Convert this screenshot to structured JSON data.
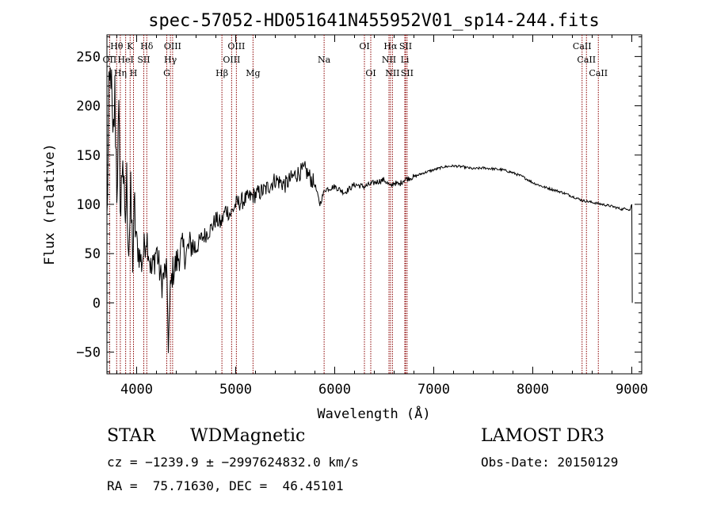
{
  "chart_data": {
    "type": "line",
    "title": "spec-57052-HD051641N455952V01_sp14-244.fits",
    "xlabel": "Wavelength (Å)",
    "ylabel": "Flux (relative)",
    "xlim": [
      3700,
      9100
    ],
    "ylim": [
      -72,
      272
    ],
    "x_ticks": [
      4000,
      5000,
      6000,
      7000,
      8000,
      9000
    ],
    "y_ticks": [
      -50,
      0,
      50,
      100,
      150,
      200,
      250
    ],
    "grid": false,
    "line_color": "#000000",
    "marker_color": "#8b0000",
    "series": [
      {
        "x": [
          3700,
          3720,
          3740,
          3760,
          3780,
          3800,
          3820,
          3840,
          3860,
          3880,
          3900,
          3920,
          3940,
          3960,
          3980,
          4000,
          4050,
          4100,
          4150,
          4200,
          4250,
          4300,
          4320,
          4340,
          4360,
          4400,
          4450,
          4500,
          4550,
          4600,
          4650,
          4700,
          4750,
          4800,
          4850,
          4900,
          4950,
          5000,
          5100,
          5200,
          5300,
          5400,
          5500,
          5600,
          5700,
          5800,
          5850,
          5900,
          6000,
          6100,
          6200,
          6300,
          6400,
          6500,
          6562,
          6600,
          6650,
          6700,
          6800,
          6900,
          7000,
          7100,
          7200,
          7300,
          7400,
          7500,
          7600,
          7700,
          7800,
          7900,
          8000,
          8100,
          8200,
          8300,
          8400,
          8500,
          8600,
          8700,
          8800,
          8900,
          8950,
          8980,
          9000,
          9005
        ],
        "y": [
          80,
          200,
          240,
          150,
          210,
          120,
          180,
          90,
          160,
          70,
          120,
          60,
          100,
          50,
          90,
          60,
          40,
          70,
          30,
          55,
          20,
          35,
          -40,
          10,
          30,
          40,
          55,
          50,
          60,
          55,
          65,
          70,
          75,
          85,
          80,
          95,
          90,
          100,
          105,
          110,
          115,
          125,
          120,
          130,
          135,
          120,
          100,
          115,
          118,
          112,
          120,
          118,
          122,
          125,
          118,
          122,
          120,
          125,
          128,
          132,
          135,
          138,
          139,
          138,
          136,
          137,
          136,
          135,
          132,
          128,
          122,
          118,
          115,
          112,
          108,
          104,
          102,
          100,
          98,
          95,
          96,
          94,
          100,
          0
        ]
      }
    ],
    "lines": [
      {
        "name": "Hθ",
        "x": 3798,
        "row": 1
      },
      {
        "name": "OII",
        "x": 3727,
        "row": 2
      },
      {
        "name": "Hη",
        "x": 3835,
        "row": 3
      },
      {
        "name": "HeI",
        "x": 3889,
        "row": 2
      },
      {
        "name": "K",
        "x": 3934,
        "row": 1
      },
      {
        "name": "H",
        "x": 3968,
        "row": 3
      },
      {
        "name": "SII",
        "x": 4072,
        "row": 2
      },
      {
        "name": "Hδ",
        "x": 4102,
        "row": 1
      },
      {
        "name": "G",
        "x": 4304,
        "row": 3
      },
      {
        "name": "OIII",
        "x": 4363,
        "row": 1
      },
      {
        "name": "Hγ",
        "x": 4341,
        "row": 2
      },
      {
        "name": "Hβ",
        "x": 4861,
        "row": 3
      },
      {
        "name": "OIII",
        "x": 4959,
        "row": 2
      },
      {
        "name": "OIII",
        "x": 5007,
        "row": 1
      },
      {
        "name": "Mg",
        "x": 5175,
        "row": 3
      },
      {
        "name": "Na",
        "x": 5893,
        "row": 2
      },
      {
        "name": "OI",
        "x": 6300,
        "row": 1
      },
      {
        "name": "OI",
        "x": 6364,
        "row": 3
      },
      {
        "name": "NII",
        "x": 6548,
        "row": 2
      },
      {
        "name": "Hα",
        "x": 6563,
        "row": 1
      },
      {
        "name": "NII",
        "x": 6583,
        "row": 3
      },
      {
        "name": "Li",
        "x": 6708,
        "row": 2
      },
      {
        "name": "SII",
        "x": 6716,
        "row": 1
      },
      {
        "name": "SII",
        "x": 6731,
        "row": 3
      },
      {
        "name": "CaII",
        "x": 8498,
        "row": 1
      },
      {
        "name": "CaII",
        "x": 8542,
        "row": 2
      },
      {
        "name": "CaII",
        "x": 8662,
        "row": 3
      }
    ]
  },
  "info": {
    "class": "STAR",
    "subclass": "WDMagnetic",
    "survey": "LAMOST DR3",
    "cz": "cz = −1239.9 ± −2997624832.0 km/s",
    "obs_date": "Obs-Date: 20150129",
    "coords": "RA =  75.71630, DEC =  46.45101"
  }
}
